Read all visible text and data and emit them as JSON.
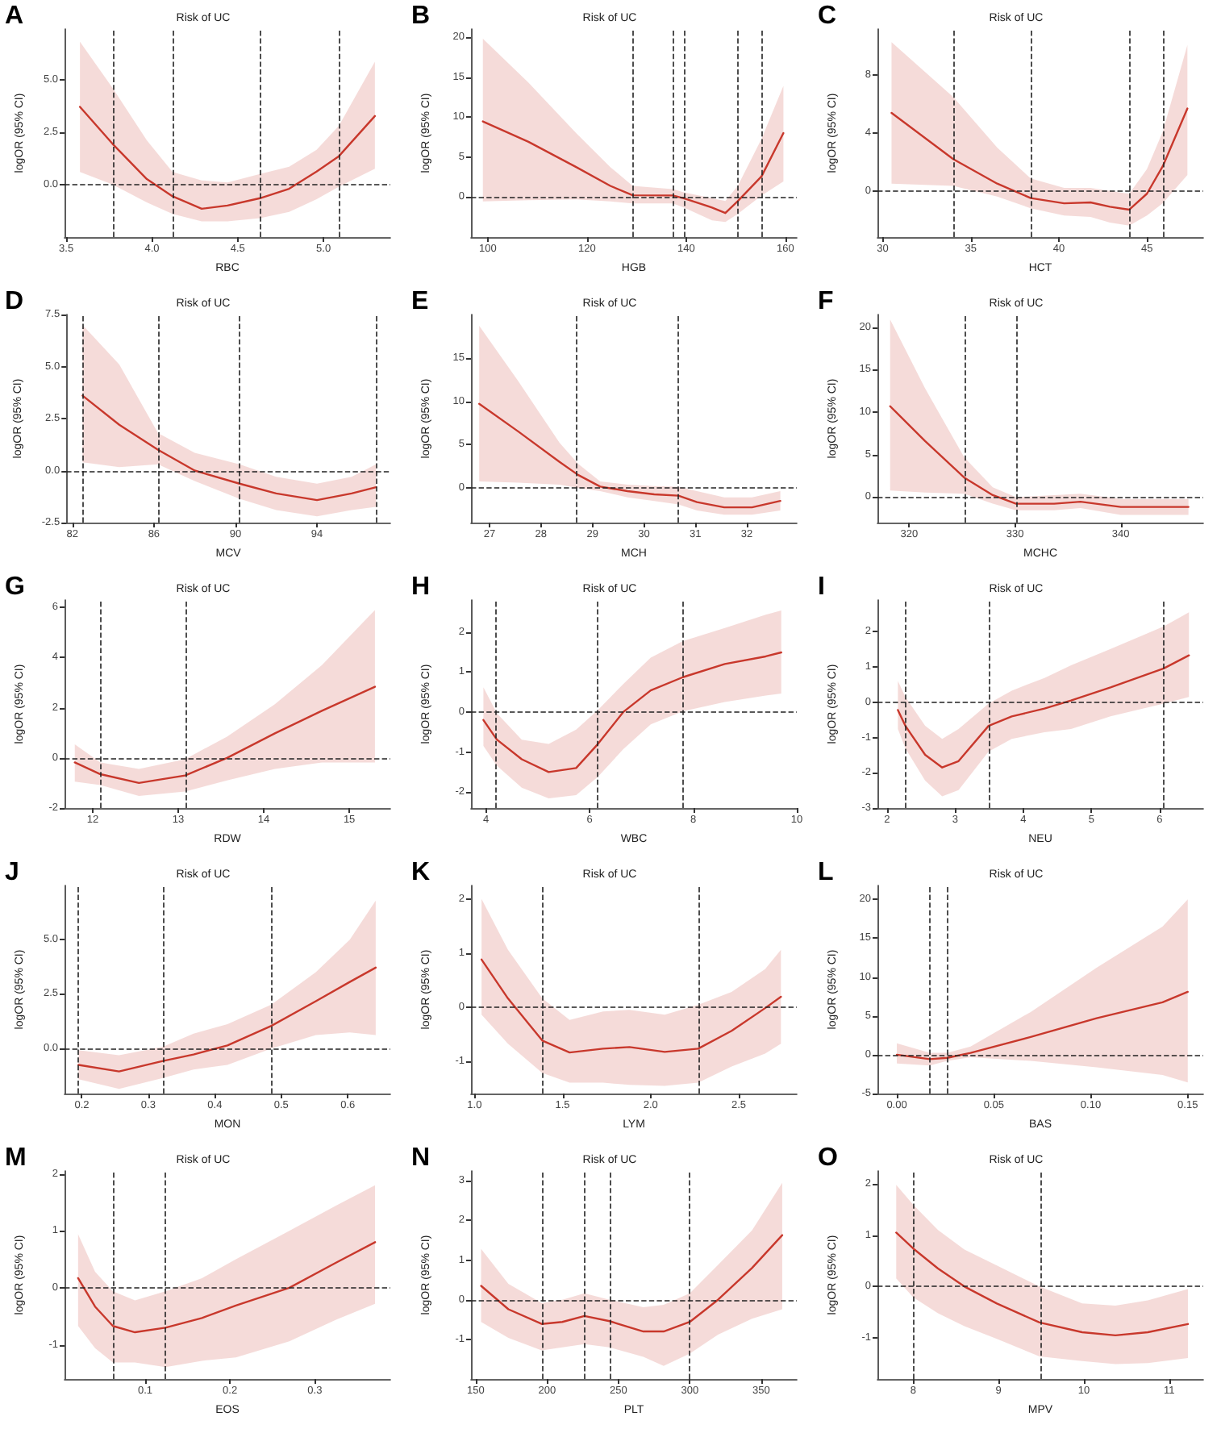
{
  "chart_data": [
    {
      "type": "line",
      "title": "Risk of UC",
      "xlabel": "RBC",
      "ylabel": "logOR (95% CI)",
      "annotations": [
        "A"
      ],
      "xlim": [
        3.49,
        5.39
      ],
      "ylim": [
        -2.5,
        7.4
      ],
      "xticks": [
        {
          "value": 3.5,
          "label": "3.5"
        },
        {
          "value": 4,
          "label": "4.0"
        },
        {
          "value": 4.5,
          "label": "4.5"
        },
        {
          "value": 5,
          "label": "5.0"
        }
      ],
      "yticks": [
        {
          "value": 0,
          "label": "0.0"
        },
        {
          "value": 2.5,
          "label": "2.5"
        },
        {
          "value": 5,
          "label": "5.0"
        }
      ],
      "ref_lines": [
        {
          "axis": "x",
          "value": 3.77,
          "line_style": "dashed"
        },
        {
          "axis": "x",
          "value": 4.12,
          "line_style": "dashed"
        },
        {
          "axis": "x",
          "value": 4.63,
          "line_style": "dashed"
        },
        {
          "axis": "x",
          "value": 5.09,
          "line_style": "dashed"
        },
        {
          "axis": "y",
          "value": 0,
          "line_style": "dashed"
        }
      ],
      "series": [
        {
          "color": "#c8382c",
          "x": [
            3.58,
            3.77,
            3.97,
            4.12,
            4.29,
            4.44,
            4.63,
            4.8,
            4.96,
            5.09,
            5.3
          ],
          "values": [
            3.7,
            1.94,
            0.26,
            -0.56,
            -1.15,
            -1.0,
            -0.65,
            -0.2,
            0.62,
            1.35,
            3.26
          ],
          "upper": [
            6.8,
            4.6,
            2.1,
            0.6,
            0.2,
            0.1,
            0.5,
            0.85,
            1.65,
            2.8,
            5.85
          ],
          "lower": [
            0.6,
            0.0,
            -0.85,
            -1.4,
            -1.75,
            -1.75,
            -1.6,
            -1.3,
            -0.7,
            -0.1,
            0.75
          ]
        }
      ]
    },
    {
      "type": "line",
      "title": "Risk of UC",
      "xlabel": "HGB",
      "ylabel": "logOR (95% CI)",
      "annotations": [
        "B"
      ],
      "xlim": [
        96.6,
        162.3
      ],
      "ylim": [
        -5,
        21
      ],
      "xticks": [
        100,
        120,
        140,
        160
      ],
      "yticks": [
        0,
        5,
        10,
        15,
        20
      ],
      "ref_lines": [
        {
          "axis": "x",
          "value": 129.2,
          "line_style": "dashed"
        },
        {
          "axis": "x",
          "value": 137.3,
          "line_style": "dashed"
        },
        {
          "axis": "x",
          "value": 139.5,
          "line_style": "dashed"
        },
        {
          "axis": "x",
          "value": 150.4,
          "line_style": "dashed"
        },
        {
          "axis": "x",
          "value": 155.2,
          "line_style": "dashed"
        },
        {
          "axis": "y",
          "value": 0,
          "line_style": "dashed"
        }
      ],
      "series": [
        {
          "color": "#c8382c",
          "x": [
            99,
            108.2,
            117.8,
            124.7,
            129.2,
            137.3,
            139.5,
            145.2,
            147.9,
            150.4,
            155.2,
            159.6
          ],
          "values": [
            9.45,
            6.9,
            3.75,
            1.4,
            0.23,
            0.2,
            -0.15,
            -1.3,
            -2.0,
            -0.5,
            2.6,
            8
          ],
          "upper": [
            19.8,
            14.3,
            8,
            3.75,
            1.4,
            1,
            0.6,
            -0.15,
            -0.5,
            1.4,
            7.3,
            13.9
          ],
          "lower": [
            -0.55,
            -0.4,
            -0.3,
            -0.55,
            -0.8,
            -0.8,
            -1.3,
            -2.9,
            -3.1,
            -2.1,
            0.2,
            1.95
          ]
        }
      ]
    },
    {
      "type": "line",
      "title": "Risk of UC",
      "xlabel": "HCT",
      "ylabel": "logOR (95% CI)",
      "annotations": [
        "C"
      ],
      "xlim": [
        29.7,
        48.2
      ],
      "ylim": [
        -3.2,
        11.2
      ],
      "xticks": [
        30,
        35,
        40,
        45
      ],
      "yticks": [
        0,
        4,
        8
      ],
      "ref_lines": [
        {
          "axis": "x",
          "value": 34,
          "line_style": "dashed"
        },
        {
          "axis": "x",
          "value": 38.4,
          "line_style": "dashed"
        },
        {
          "axis": "x",
          "value": 44,
          "line_style": "dashed"
        },
        {
          "axis": "x",
          "value": 45.9,
          "line_style": "dashed"
        },
        {
          "axis": "y",
          "value": 0,
          "line_style": "dashed"
        }
      ],
      "series": [
        {
          "color": "#c8382c",
          "x": [
            30.5,
            34,
            36.5,
            38.4,
            40.3,
            41.8,
            42.9,
            44,
            45,
            45.9,
            47.3
          ],
          "values": [
            5.4,
            2.2,
            0.5,
            -0.5,
            -0.86,
            -0.8,
            -1.1,
            -1.3,
            -0.2,
            1.7,
            5.7
          ],
          "upper": [
            10.3,
            6.5,
            3,
            0.86,
            0.2,
            0.2,
            0,
            -0.2,
            1.5,
            4.1,
            10.1
          ],
          "lower": [
            0.5,
            0.35,
            -0.4,
            -1.2,
            -1.7,
            -1.8,
            -2.2,
            -2.4,
            -1.7,
            -0.86,
            1.1
          ]
        }
      ]
    },
    {
      "type": "line",
      "title": "Risk of UC",
      "xlabel": "MCV",
      "ylabel": "logOR (95% CI)",
      "annotations": [
        "D"
      ],
      "xlim": [
        81.7,
        97.6
      ],
      "ylim": [
        -2.5,
        7.5
      ],
      "xticks": [
        82,
        86,
        90,
        94
      ],
      "yticks": [
        {
          "value": -2.5,
          "label": "-2.5"
        },
        {
          "value": 0,
          "label": "0.0"
        },
        {
          "value": 2.5,
          "label": "2.5"
        },
        {
          "value": 5,
          "label": "5.0"
        },
        {
          "value": 7.5,
          "label": "7.5"
        }
      ],
      "ref_lines": [
        {
          "axis": "x",
          "value": 82.5,
          "line_style": "dashed"
        },
        {
          "axis": "x",
          "value": 86.2,
          "line_style": "dashed"
        },
        {
          "axis": "x",
          "value": 90.2,
          "line_style": "dashed"
        },
        {
          "axis": "x",
          "value": 96.9,
          "line_style": "dashed"
        },
        {
          "axis": "y",
          "value": 0,
          "line_style": "dashed"
        }
      ],
      "series": [
        {
          "color": "#c8382c",
          "x": [
            82.5,
            84.3,
            86.2,
            88,
            90.2,
            92,
            94,
            95.7,
            96.9
          ],
          "values": [
            3.6,
            2.2,
            1.0,
            0,
            -0.63,
            -1.1,
            -1.42,
            -1.1,
            -0.8
          ],
          "upper": [
            7.0,
            5.1,
            1.8,
            0.85,
            0.3,
            -0.3,
            -0.63,
            -0.3,
            0.3
          ],
          "lower": [
            0.4,
            0.16,
            0.3,
            -0.5,
            -1.36,
            -1.9,
            -2.2,
            -1.9,
            -1.74
          ]
        }
      ]
    },
    {
      "type": "line",
      "title": "Risk of UC",
      "xlabel": "MCH",
      "ylabel": "logOR (95% CI)",
      "annotations": [
        "E"
      ],
      "xlim": [
        26.64,
        32.97
      ],
      "ylim": [
        -4,
        20
      ],
      "xticks": [
        27,
        28,
        29,
        30,
        31,
        32
      ],
      "yticks": [
        0,
        5,
        10,
        15
      ],
      "ref_lines": [
        {
          "axis": "x",
          "value": 28.7,
          "line_style": "dashed"
        },
        {
          "axis": "x",
          "value": 30.67,
          "line_style": "dashed"
        },
        {
          "axis": "y",
          "value": 0,
          "line_style": "dashed"
        }
      ],
      "series": [
        {
          "color": "#c8382c",
          "x": [
            26.8,
            27.56,
            28.36,
            28.72,
            29.15,
            29.68,
            30.2,
            30.67,
            31.03,
            31.56,
            32.1,
            32.65
          ],
          "values": [
            9.7,
            6.5,
            3.0,
            1.5,
            0.15,
            -0.37,
            -0.75,
            -0.9,
            -1.64,
            -2.24,
            -2.24,
            -1.5
          ],
          "upper": [
            18.7,
            12.3,
            5.2,
            2.8,
            0.75,
            0.37,
            0.2,
            0.15,
            -0.37,
            -1.1,
            -1.1,
            -0.37
          ],
          "lower": [
            0.75,
            0.6,
            0.37,
            0,
            -0.37,
            -1.1,
            -1.5,
            -1.9,
            -2.6,
            -3.1,
            -3.1,
            -2.6
          ]
        }
      ]
    },
    {
      "type": "line",
      "title": "Risk of UC",
      "xlabel": "MCHC",
      "ylabel": "logOR (95% CI)",
      "annotations": [
        "F"
      ],
      "xlim": [
        317,
        347.8
      ],
      "ylim": [
        -3,
        21.5
      ],
      "xticks": [
        320,
        330,
        340
      ],
      "yticks": [
        0,
        5,
        10,
        15,
        20
      ],
      "ref_lines": [
        {
          "axis": "x",
          "value": 325.2,
          "line_style": "dashed"
        },
        {
          "axis": "x",
          "value": 330.1,
          "line_style": "dashed"
        },
        {
          "axis": "y",
          "value": 0,
          "line_style": "dashed"
        }
      ],
      "series": [
        {
          "color": "#c8382c",
          "x": [
            318.2,
            321.5,
            325.2,
            327.9,
            330.1,
            333.7,
            336.2,
            340,
            343.9,
            346.4
          ],
          "values": [
            10.7,
            6.6,
            2.3,
            0.23,
            -0.78,
            -0.78,
            -0.54,
            -1.16,
            -1.16,
            -1.16
          ],
          "upper": [
            20.9,
            12.8,
            4.7,
            1.16,
            0,
            0.23,
            0.4,
            -0.23,
            -0.23,
            -0.23
          ],
          "lower": [
            0.78,
            0.54,
            0.4,
            -0.78,
            -1.55,
            -1.55,
            -1.3,
            -2.1,
            -2.1,
            -2.1
          ]
        }
      ]
    },
    {
      "type": "line",
      "title": "Risk of UC",
      "xlabel": "RDW",
      "ylabel": "logOR (95% CI)",
      "annotations": [
        "G"
      ],
      "xlim": [
        11.67,
        15.48
      ],
      "ylim": [
        -2,
        6.3
      ],
      "xticks": [
        12,
        13,
        14,
        15
      ],
      "yticks": [
        -2,
        0,
        2,
        4,
        6
      ],
      "ref_lines": [
        {
          "axis": "x",
          "value": 12.09,
          "line_style": "dashed"
        },
        {
          "axis": "x",
          "value": 13.08,
          "line_style": "dashed"
        },
        {
          "axis": "y",
          "value": 0,
          "line_style": "dashed"
        }
      ],
      "series": [
        {
          "color": "#c8382c",
          "x": [
            11.79,
            12.09,
            12.54,
            13.08,
            13.57,
            14.13,
            14.68,
            15.3
          ],
          "values": [
            -0.18,
            -0.65,
            -1.0,
            -0.7,
            0,
            0.98,
            1.88,
            2.84
          ],
          "upper": [
            0.54,
            -0.18,
            -0.44,
            -0.05,
            0.85,
            2.14,
            3.7,
            5.9
          ],
          "lower": [
            -0.95,
            -1.08,
            -1.52,
            -1.34,
            -0.9,
            -0.44,
            -0.18,
            -0.18
          ]
        }
      ]
    },
    {
      "type": "line",
      "title": "Risk of UC",
      "xlabel": "WBC",
      "ylabel": "logOR (95% CI)",
      "annotations": [
        "H"
      ],
      "xlim": [
        3.71,
        10
      ],
      "ylim": [
        -2.4,
        2.8
      ],
      "xticks": [
        4,
        6,
        8,
        10
      ],
      "yticks": [
        -2,
        -1,
        0,
        1,
        2
      ],
      "ref_lines": [
        {
          "axis": "x",
          "value": 4.2,
          "line_style": "dashed"
        },
        {
          "axis": "x",
          "value": 6.16,
          "line_style": "dashed"
        },
        {
          "axis": "x",
          "value": 7.81,
          "line_style": "dashed"
        },
        {
          "axis": "y",
          "value": 0,
          "line_style": "dashed"
        }
      ],
      "series": [
        {
          "color": "#c8382c",
          "x": [
            3.95,
            4.21,
            4.69,
            5.21,
            5.74,
            6.16,
            6.65,
            7.18,
            7.8,
            8.61,
            9.4,
            9.7
          ],
          "values": [
            -0.2,
            -0.69,
            -1.18,
            -1.5,
            -1.4,
            -0.8,
            0,
            0.54,
            0.87,
            1.2,
            1.39,
            1.49
          ],
          "upper": [
            0.62,
            -0.03,
            -0.69,
            -0.8,
            -0.44,
            0.05,
            0.7,
            1.36,
            1.77,
            2.1,
            2.43,
            2.54
          ],
          "lower": [
            -0.85,
            -1.34,
            -1.89,
            -2.16,
            -2.08,
            -1.62,
            -0.93,
            -0.31,
            0.02,
            0.25,
            0.41,
            0.46
          ]
        }
      ]
    },
    {
      "type": "line",
      "title": "Risk of UC",
      "xlabel": "NEU",
      "ylabel": "logOR (95% CI)",
      "annotations": [
        "I"
      ],
      "xlim": [
        1.86,
        6.64
      ],
      "ylim": [
        -3,
        2.9
      ],
      "xticks": [
        2,
        3,
        4,
        5,
        6
      ],
      "yticks": [
        -3,
        -2,
        -1,
        0,
        1,
        2
      ],
      "ref_lines": [
        {
          "axis": "x",
          "value": 2.27,
          "line_style": "dashed"
        },
        {
          "axis": "x",
          "value": 3.49,
          "line_style": "dashed"
        },
        {
          "axis": "x",
          "value": 6.06,
          "line_style": "dashed"
        },
        {
          "axis": "y",
          "value": 0,
          "line_style": "dashed"
        }
      ],
      "series": [
        {
          "color": "#c8382c",
          "x": [
            2.16,
            2.27,
            2.56,
            2.81,
            3.05,
            3.49,
            3.83,
            4.31,
            4.7,
            5.28,
            6.06,
            6.43
          ],
          "values": [
            -0.22,
            -0.67,
            -1.49,
            -1.85,
            -1.67,
            -0.67,
            -0.4,
            -0.18,
            0.05,
            0.42,
            0.96,
            1.33
          ],
          "upper": [
            0.6,
            0.15,
            -0.67,
            -1.04,
            -0.76,
            -0.04,
            0.33,
            0.69,
            1.05,
            1.51,
            2.15,
            2.55
          ],
          "lower": [
            -0.76,
            -1.31,
            -2.22,
            -2.67,
            -2.49,
            -1.4,
            -1.04,
            -0.85,
            -0.76,
            -0.4,
            -0.04,
            0.15
          ]
        }
      ]
    },
    {
      "type": "line",
      "title": "Risk of UC",
      "xlabel": "MON",
      "ylabel": "logOR (95% CI)",
      "annotations": [
        "J"
      ],
      "xlim": [
        0.174,
        0.664
      ],
      "ylim": [
        -2.1,
        7.5
      ],
      "xticks": [
        0.2,
        0.3,
        0.4,
        0.5,
        0.6
      ],
      "yticks": [
        {
          "value": 0,
          "label": "0.0"
        },
        {
          "value": 2.5,
          "label": "2.5"
        },
        {
          "value": 5,
          "label": "5.0"
        }
      ],
      "ref_lines": [
        {
          "axis": "x",
          "value": 0.195,
          "line_style": "dashed"
        },
        {
          "axis": "x",
          "value": 0.322,
          "line_style": "dashed"
        },
        {
          "axis": "x",
          "value": 0.485,
          "line_style": "dashed"
        },
        {
          "axis": "y",
          "value": 0,
          "line_style": "dashed"
        }
      ],
      "series": [
        {
          "color": "#c8382c",
          "x": [
            0.195,
            0.256,
            0.322,
            0.368,
            0.419,
            0.485,
            0.552,
            0.603,
            0.642
          ],
          "values": [
            -0.78,
            -1.08,
            -0.6,
            -0.3,
            0.12,
            1.02,
            2.16,
            3.05,
            3.71
          ],
          "upper": [
            -0.1,
            -0.33,
            0.06,
            0.66,
            1.1,
            2.0,
            3.5,
            5.0,
            6.8
          ],
          "lower": [
            -1.44,
            -1.89,
            -1.38,
            -0.99,
            -0.78,
            -0.03,
            0.6,
            0.72,
            0.6
          ]
        }
      ]
    },
    {
      "type": "line",
      "title": "Risk of UC",
      "xlabel": "LYM",
      "ylabel": "logOR (95% CI)",
      "annotations": [
        "K"
      ],
      "xlim": [
        0.98,
        2.83
      ],
      "ylim": [
        -1.6,
        2.25
      ],
      "xticks": [
        {
          "value": 1,
          "label": "1.0"
        },
        {
          "value": 1.5,
          "label": "1.5"
        },
        {
          "value": 2,
          "label": "2.0"
        },
        {
          "value": 2.5,
          "label": "2.5"
        }
      ],
      "yticks": [
        -1,
        0,
        1,
        2
      ],
      "ref_lines": [
        {
          "axis": "x",
          "value": 1.385,
          "line_style": "dashed"
        },
        {
          "axis": "x",
          "value": 2.27,
          "line_style": "dashed"
        },
        {
          "axis": "y",
          "value": 0,
          "line_style": "dashed"
        }
      ],
      "series": [
        {
          "color": "#c8382c",
          "x": [
            1.04,
            1.19,
            1.385,
            1.54,
            1.73,
            1.88,
            2.08,
            2.27,
            2.46,
            2.65,
            2.74
          ],
          "values": [
            0.88,
            0.16,
            -0.62,
            -0.84,
            -0.77,
            -0.74,
            -0.83,
            -0.77,
            -0.44,
            -0.02,
            0.19
          ],
          "upper": [
            2.0,
            1.06,
            0.16,
            -0.24,
            -0.08,
            -0.05,
            -0.14,
            0.04,
            0.28,
            0.7,
            1.06
          ],
          "lower": [
            -0.14,
            -0.68,
            -1.22,
            -1.4,
            -1.4,
            -1.44,
            -1.46,
            -1.4,
            -1.1,
            -0.86,
            -0.68
          ]
        }
      ]
    },
    {
      "type": "line",
      "title": "Risk of UC",
      "xlabel": "BAS",
      "ylabel": "logOR (95% CI)",
      "annotations": [
        "L"
      ],
      "xlim": [
        -0.01,
        0.158
      ],
      "ylim": [
        -5,
        21.8
      ],
      "xticks": [
        {
          "value": 0,
          "label": "0.00"
        },
        {
          "value": 0.05,
          "label": "0.05"
        },
        {
          "value": 0.1,
          "label": "0.10"
        },
        {
          "value": 0.15,
          "label": "0.15"
        }
      ],
      "yticks": [
        -5,
        0,
        5,
        10,
        15,
        20
      ],
      "ref_lines": [
        {
          "axis": "x",
          "value": 0.017,
          "line_style": "dashed"
        },
        {
          "axis": "x",
          "value": 0.026,
          "line_style": "dashed"
        },
        {
          "axis": "y",
          "value": 0,
          "line_style": "dashed"
        }
      ],
      "series": [
        {
          "color": "#c8382c",
          "x": [
            0,
            0.017,
            0.026,
            0.038,
            0.069,
            0.103,
            0.137,
            0.15
          ],
          "values": [
            0,
            -0.57,
            -0.4,
            0.24,
            2.28,
            4.7,
            6.75,
            8.1
          ],
          "upper": [
            1.46,
            0.24,
            0.24,
            1.06,
            5.5,
            11.2,
            16.5,
            20
          ],
          "lower": [
            -1.14,
            -1.38,
            -0.8,
            -0.33,
            -0.8,
            -1.63,
            -2.6,
            -3.58
          ]
        }
      ]
    },
    {
      "type": "line",
      "title": "Risk of UC",
      "xlabel": "EOS",
      "ylabel": "logOR (95% CI)",
      "annotations": [
        "M"
      ],
      "xlim": [
        0.005,
        0.389
      ],
      "ylim": [
        -1.6,
        2.05
      ],
      "xticks": [
        0.1,
        0.2,
        0.3
      ],
      "yticks": [
        -1,
        0,
        1,
        2
      ],
      "ref_lines": [
        {
          "axis": "x",
          "value": 0.062,
          "line_style": "dashed"
        },
        {
          "axis": "x",
          "value": 0.124,
          "line_style": "dashed"
        },
        {
          "axis": "y",
          "value": 0,
          "line_style": "dashed"
        }
      ],
      "series": [
        {
          "color": "#c8382c",
          "x": [
            0.021,
            0.041,
            0.062,
            0.088,
            0.124,
            0.167,
            0.207,
            0.27,
            0.325,
            0.371
          ],
          "values": [
            0.17,
            -0.33,
            -0.67,
            -0.78,
            -0.7,
            -0.53,
            -0.31,
            0,
            0.44,
            0.8
          ],
          "upper": [
            0.94,
            0.28,
            -0.06,
            -0.22,
            -0.06,
            0.17,
            0.5,
            1.0,
            1.44,
            1.8
          ],
          "lower": [
            -0.67,
            -1.06,
            -1.31,
            -1.31,
            -1.39,
            -1.28,
            -1.22,
            -0.94,
            -0.56,
            -0.28
          ]
        }
      ]
    },
    {
      "type": "line",
      "title": "Risk of UC",
      "xlabel": "PLT",
      "ylabel": "logOR (95% CI)",
      "annotations": [
        "N"
      ],
      "xlim": [
        146.7,
        375
      ],
      "ylim": [
        -2,
        3.25
      ],
      "xticks": [
        150,
        200,
        250,
        300,
        350
      ],
      "yticks": [
        -1,
        0,
        1,
        2,
        3
      ],
      "ref_lines": [
        {
          "axis": "x",
          "value": 196.2,
          "line_style": "dashed"
        },
        {
          "axis": "x",
          "value": 226.2,
          "line_style": "dashed"
        },
        {
          "axis": "x",
          "value": 243.8,
          "line_style": "dashed"
        },
        {
          "axis": "x",
          "value": 300,
          "line_style": "dashed"
        },
        {
          "axis": "y",
          "value": 0,
          "line_style": "dashed"
        }
      ],
      "series": [
        {
          "color": "#c8382c",
          "x": [
            153.8,
            172.9,
            196.2,
            210.7,
            226.2,
            243.8,
            267.5,
            281.7,
            300,
            319.8,
            343.6,
            364.8
          ],
          "values": [
            0.35,
            -0.24,
            -0.61,
            -0.56,
            -0.41,
            -0.54,
            -0.8,
            -0.8,
            -0.56,
            0,
            0.8,
            1.63
          ],
          "upper": [
            1.28,
            0.4,
            -0.08,
            0,
            0.16,
            0,
            -0.19,
            -0.13,
            0.16,
            0.88,
            1.75,
            2.95
          ],
          "lower": [
            -0.56,
            -0.96,
            -1.28,
            -1.2,
            -1.12,
            -1.2,
            -1.44,
            -1.67,
            -1.36,
            -0.88,
            -0.48,
            -0.24
          ]
        }
      ]
    },
    {
      "type": "line",
      "title": "Risk of UC",
      "xlabel": "MPV",
      "ylabel": "logOR (95% CI)",
      "annotations": [
        "O"
      ],
      "xlim": [
        7.58,
        11.4
      ],
      "ylim": [
        -1.8,
        2.25
      ],
      "xticks": [
        8,
        9,
        10,
        11
      ],
      "yticks": [
        -1,
        0,
        1,
        2
      ],
      "ref_lines": [
        {
          "axis": "x",
          "value": 8,
          "line_style": "dashed"
        },
        {
          "axis": "x",
          "value": 9.5,
          "line_style": "dashed"
        },
        {
          "axis": "y",
          "value": 0,
          "line_style": "dashed"
        }
      ],
      "series": [
        {
          "color": "#c8382c",
          "x": [
            7.8,
            8,
            8.29,
            8.6,
            8.98,
            9.48,
            9.98,
            10.37,
            10.75,
            11.22
          ],
          "values": [
            1.05,
            0.74,
            0.35,
            0,
            -0.33,
            -0.7,
            -0.89,
            -0.95,
            -0.89,
            -0.73
          ],
          "upper": [
            1.98,
            1.59,
            1.1,
            0.72,
            0.41,
            0,
            -0.33,
            -0.37,
            -0.27,
            -0.05
          ],
          "lower": [
            0.16,
            -0.21,
            -0.52,
            -0.77,
            -1.02,
            -1.36,
            -1.45,
            -1.51,
            -1.49,
            -1.39
          ]
        }
      ]
    }
  ]
}
